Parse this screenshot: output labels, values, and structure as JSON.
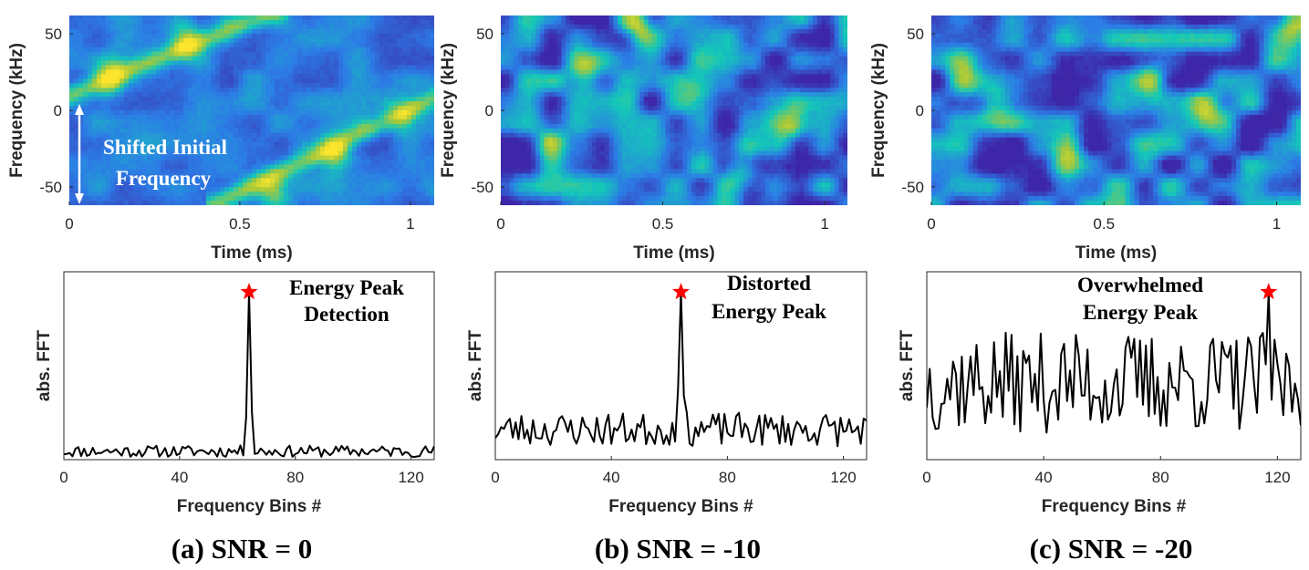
{
  "figure": {
    "panels": [
      {
        "caption": "(a) SNR = 0"
      },
      {
        "caption": "(b) SNR = -10"
      },
      {
        "caption": "(c) SNR = -20"
      }
    ],
    "annotation_a_top": "Shifted Initial",
    "annotation_a_bottom": "Frequency"
  },
  "colors": {
    "line": "#000000",
    "star": "#ff0000",
    "colormap": [
      "#3e26a8",
      "#2c7ce6",
      "#14c8b8",
      "#a4c83c",
      "#fce52c"
    ]
  },
  "chart_data": [
    {
      "type": "heatmap",
      "panel": "a",
      "xlabel": "Time (ms)",
      "ylabel": "Frequency (kHz)",
      "xlim": [
        0,
        1.07
      ],
      "ylim": [
        -62,
        62
      ],
      "xticks": [
        0,
        0.5,
        1
      ],
      "xtick_labels": [
        "0",
        "0.5",
        "1"
      ],
      "yticks": [
        50,
        0,
        -50
      ],
      "ytick_labels": [
        "50",
        "0",
        "-50"
      ],
      "chirp_segments": [
        {
          "t": [
            0,
            0.62
          ],
          "f": [
            10,
            66
          ]
        },
        {
          "t": [
            0.42,
            1.07
          ],
          "f": [
            -62,
            8
          ]
        }
      ],
      "hotspots": [
        {
          "t": 0.12,
          "f": 22,
          "v": 1.0
        },
        {
          "t": 0.34,
          "f": 45,
          "v": 0.95
        },
        {
          "t": 0.78,
          "f": -28,
          "v": 0.9
        },
        {
          "t": 0.6,
          "f": -52,
          "v": 0.85
        },
        {
          "t": 0.98,
          "f": -5,
          "v": 0.6
        }
      ],
      "noise_level": 0.12
    },
    {
      "type": "heatmap",
      "panel": "b",
      "xlabel": "Time (ms)",
      "ylabel": "Frequency (kHz)",
      "xlim": [
        0,
        1.07
      ],
      "ylim": [
        -62,
        62
      ],
      "xticks": [
        0,
        0.5,
        1
      ],
      "xtick_labels": [
        "0",
        "0.5",
        "1"
      ],
      "yticks": [
        50,
        0,
        -50
      ],
      "ytick_labels": [
        "50",
        "0",
        "-50"
      ],
      "chirp_segments": [],
      "hotspots": [
        {
          "t": 0.42,
          "f": 55,
          "v": 1.0
        },
        {
          "t": 0.26,
          "f": 25,
          "v": 0.7
        },
        {
          "t": 0.75,
          "f": -40,
          "v": 0.75
        },
        {
          "t": 0.9,
          "f": -10,
          "v": 0.8
        },
        {
          "t": 0.15,
          "f": -20,
          "v": 0.55
        },
        {
          "t": 0.6,
          "f": 10,
          "v": 0.5
        }
      ],
      "noise_level": 0.3
    },
    {
      "type": "heatmap",
      "panel": "c",
      "xlabel": "Time (ms)",
      "ylabel": "Frequency (kHz)",
      "xlim": [
        0,
        1.07
      ],
      "ylim": [
        -62,
        62
      ],
      "xticks": [
        0,
        0.5,
        1
      ],
      "xtick_labels": [
        "0",
        "0.5",
        "1"
      ],
      "yticks": [
        50,
        0,
        -50
      ],
      "ytick_labels": [
        "50",
        "0",
        "-50"
      ],
      "chirp_segments": [],
      "hotspots": [
        {
          "t": 0.18,
          "f": 5,
          "v": 0.9
        },
        {
          "t": 0.1,
          "f": 20,
          "v": 0.7
        },
        {
          "t": 0.8,
          "f": 0,
          "v": 0.75
        },
        {
          "t": 1.05,
          "f": 52,
          "v": 0.8
        },
        {
          "t": 0.65,
          "f": 20,
          "v": 0.6
        },
        {
          "t": 0.4,
          "f": -30,
          "v": 0.55
        }
      ],
      "noise_level": 0.35
    },
    {
      "type": "line",
      "panel": "a",
      "xlabel": "Frequency Bins #",
      "ylabel": "abs. FFT",
      "xlim": [
        0,
        128
      ],
      "ylim": [
        0,
        1.12
      ],
      "xticks": [
        0,
        40,
        80,
        120
      ],
      "xtick_labels": [
        "0",
        "40",
        "80",
        "120"
      ],
      "baseline": 0.05,
      "noise": 0.035,
      "peaks": [
        {
          "x": 64,
          "y": 1.0
        },
        {
          "x": 63,
          "y": 0.25
        },
        {
          "x": 65,
          "y": 0.28
        }
      ],
      "seed": 11,
      "marker": {
        "x": 64,
        "y": 1.0
      },
      "annotation": [
        "Energy Peak",
        "Detection"
      ]
    },
    {
      "type": "line",
      "panel": "b",
      "xlabel": "Frequency Bins #",
      "ylabel": "abs. FFT",
      "xlim": [
        0,
        128
      ],
      "ylim": [
        0,
        1.12
      ],
      "xticks": [
        0,
        40,
        80,
        120
      ],
      "xtick_labels": [
        "0",
        "40",
        "80",
        "120"
      ],
      "baseline": 0.18,
      "noise": 0.1,
      "peaks": [
        {
          "x": 64,
          "y": 1.0
        },
        {
          "x": 63,
          "y": 0.42
        },
        {
          "x": 65,
          "y": 0.38
        }
      ],
      "seed": 23,
      "marker": {
        "x": 64,
        "y": 1.0
      },
      "annotation": [
        "Distorted",
        "Energy Peak"
      ]
    },
    {
      "type": "line",
      "panel": "c",
      "xlabel": "Frequency Bins #",
      "ylabel": "abs. FFT",
      "xlim": [
        0,
        128
      ],
      "ylim": [
        0,
        1.12
      ],
      "xticks": [
        0,
        40,
        80,
        120
      ],
      "xtick_labels": [
        "0",
        "40",
        "80",
        "120"
      ],
      "baseline": 0.46,
      "noise": 0.3,
      "peaks": [
        {
          "x": 117,
          "y": 1.0
        }
      ],
      "seed": 37,
      "marker": {
        "x": 117,
        "y": 1.0
      },
      "annotation": [
        "Overwhelmed",
        "Energy Peak"
      ]
    }
  ]
}
